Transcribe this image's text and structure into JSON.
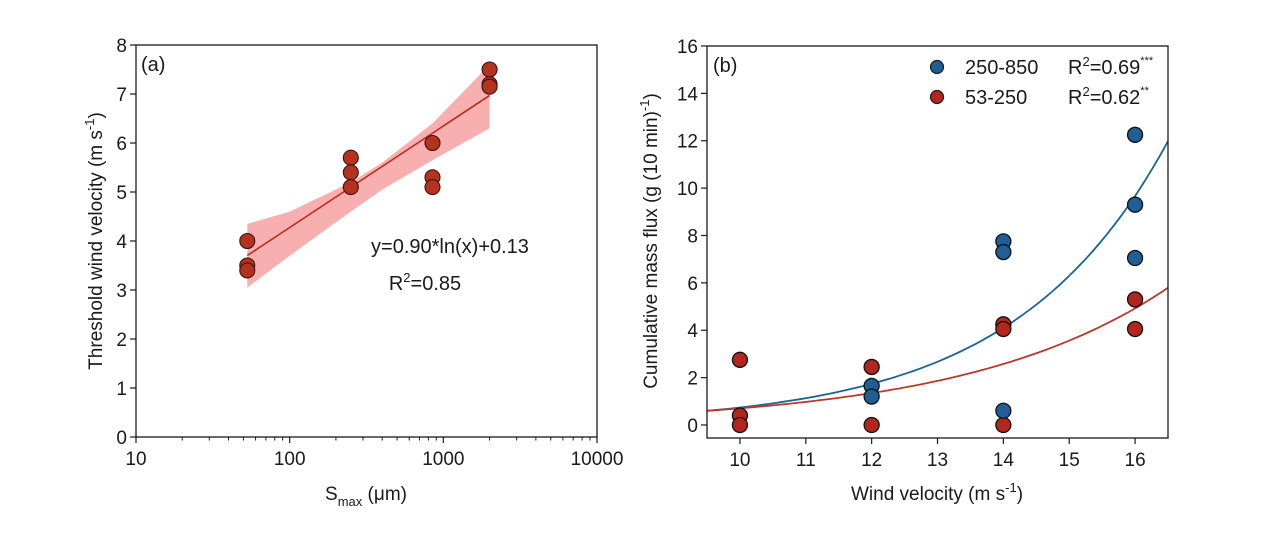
{
  "chart_data": [
    {
      "id": "a",
      "type": "scatter",
      "panel_label": "(a)",
      "title": "",
      "xlabel": "S",
      "xlabel_sub": "max",
      "xlabel_unit": " (μm)",
      "ylabel": "Threshold wind velocity (m s",
      "ylabel_sup": "-1",
      "ylabel_end": ")",
      "xscale": "log",
      "xlim": [
        10,
        10000
      ],
      "ylim": [
        0,
        8
      ],
      "xticks": [
        10,
        100,
        1000,
        10000
      ],
      "xtick_labels": [
        "10",
        "100",
        "1000",
        "10000"
      ],
      "yticks": [
        0,
        1,
        2,
        3,
        4,
        5,
        6,
        7,
        8
      ],
      "ytick_labels": [
        "0",
        "1",
        "2",
        "3",
        "4",
        "5",
        "6",
        "7",
        "8"
      ],
      "grid": false,
      "points": [
        {
          "x": 53,
          "y": 4.0
        },
        {
          "x": 53,
          "y": 3.5
        },
        {
          "x": 53,
          "y": 3.4
        },
        {
          "x": 250,
          "y": 5.7
        },
        {
          "x": 250,
          "y": 5.4
        },
        {
          "x": 250,
          "y": 5.1
        },
        {
          "x": 850,
          "y": 6.0
        },
        {
          "x": 850,
          "y": 5.3
        },
        {
          "x": 850,
          "y": 5.1
        },
        {
          "x": 2000,
          "y": 7.5
        },
        {
          "x": 2000,
          "y": 7.2
        },
        {
          "x": 2000,
          "y": 7.15
        }
      ],
      "point_color": "#b5321f",
      "fit": {
        "model": "y = a*ln(x) + b",
        "a": 0.9,
        "b": 0.13,
        "x_range": [
          53,
          2000
        ],
        "color": "#c0281e"
      },
      "confidence_band": {
        "x": [
          53,
          100,
          250,
          400,
          850,
          2000
        ],
        "lower": [
          3.05,
          3.7,
          4.6,
          5.05,
          5.65,
          6.3
        ],
        "upper": [
          4.35,
          4.6,
          5.2,
          5.6,
          6.4,
          7.6
        ],
        "color": "#f7a1a1"
      },
      "annotations": [
        "y=0.90*ln(x)+0.13",
        "R",
        "2",
        "=0.85"
      ]
    },
    {
      "id": "b",
      "type": "scatter",
      "panel_label": "(b)",
      "title": "",
      "xlabel": "Wind velocity (m s",
      "xlabel_sup": "-1",
      "xlabel_end": ")",
      "ylabel": "Cumulative mass flux (g (10 min)",
      "ylabel_sup": "-1",
      "ylabel_end": ")",
      "xlim": [
        9.5,
        16.5
      ],
      "ylim": [
        -0.55,
        16
      ],
      "xticks": [
        10,
        11,
        12,
        13,
        14,
        15,
        16
      ],
      "xtick_labels": [
        "10",
        "11",
        "12",
        "13",
        "14",
        "15",
        "16"
      ],
      "yticks": [
        0,
        2,
        4,
        6,
        8,
        10,
        12,
        14,
        16
      ],
      "ytick_labels": [
        "0",
        "2",
        "4",
        "6",
        "8",
        "10",
        "12",
        "14",
        "16"
      ],
      "grid": false,
      "legend_position": "top-right",
      "series": [
        {
          "name": "250-850",
          "r2_label": "R",
          "r2_sup": "2",
          "r2_value": "=0.69",
          "significance": "***",
          "color": "#1f5f96",
          "points": [
            {
              "x": 12,
              "y": 1.65
            },
            {
              "x": 12,
              "y": 1.2
            },
            {
              "x": 14,
              "y": 7.75
            },
            {
              "x": 14,
              "y": 7.3
            },
            {
              "x": 14,
              "y": 0.6
            },
            {
              "x": 16,
              "y": 12.25
            },
            {
              "x": 16,
              "y": 9.3
            },
            {
              "x": 16,
              "y": 7.05
            }
          ],
          "fit": {
            "model": "y = a*exp(b*x)",
            "a": 0.0101,
            "b": 0.429,
            "color": "#1b6491"
          }
        },
        {
          "name": "53-250",
          "r2_label": "R",
          "r2_sup": "2",
          "r2_value": "=0.62",
          "significance": "**",
          "color": "#b3261e",
          "points": [
            {
              "x": 10,
              "y": 2.75
            },
            {
              "x": 10,
              "y": 0.4
            },
            {
              "x": 10,
              "y": 0.0
            },
            {
              "x": 12,
              "y": 2.45
            },
            {
              "x": 12,
              "y": 0.0
            },
            {
              "x": 14,
              "y": 4.25
            },
            {
              "x": 14,
              "y": 4.05
            },
            {
              "x": 14,
              "y": 0.0
            },
            {
              "x": 16,
              "y": 5.3
            },
            {
              "x": 16,
              "y": 4.05
            }
          ],
          "fit": {
            "model": "y = a*exp(b*x)",
            "a": 0.0276,
            "b": 0.324,
            "color": "#b83a2e"
          }
        }
      ]
    }
  ]
}
